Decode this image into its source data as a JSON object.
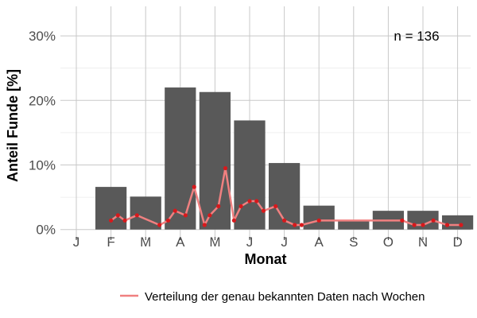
{
  "chart_data": {
    "type": "bar",
    "title": "",
    "xlabel": "Monat",
    "ylabel": "Anteil Funde [%]",
    "categories": [
      "J",
      "F",
      "M",
      "A",
      "M",
      "J",
      "J",
      "A",
      "S",
      "O",
      "N",
      "D"
    ],
    "values": [
      0,
      6.6,
      5.1,
      22.0,
      21.3,
      16.9,
      10.3,
      3.7,
      1.5,
      2.9,
      2.9,
      2.2
    ],
    "ylim": [
      0,
      34
    ],
    "yticks": [
      0,
      10,
      20,
      30
    ],
    "ytick_labels": [
      "0%",
      "10%",
      "20%",
      "30%"
    ],
    "grid": true,
    "annotation": "n = 136",
    "bar_color": "#595959",
    "line_series": {
      "name": "Verteilung der genau bekannten Daten nach Wochen",
      "color": "#f08080",
      "point_color": "#d7191c",
      "x": [
        2.0,
        2.2,
        2.4,
        2.75,
        3.4,
        3.65,
        3.85,
        4.15,
        4.4,
        4.7,
        4.85,
        5.1,
        5.3,
        5.55,
        5.75,
        6.0,
        6.2,
        6.4,
        6.75,
        7.0,
        7.3,
        7.5,
        8.0,
        10.4,
        10.75,
        11.0,
        11.3,
        11.7,
        12.1
      ],
      "y": [
        1.4,
        2.2,
        1.4,
        2.2,
        0.7,
        1.4,
        2.9,
        2.2,
        6.6,
        0.7,
        2.2,
        3.6,
        9.5,
        1.4,
        3.6,
        4.4,
        4.4,
        2.9,
        3.6,
        1.4,
        0.7,
        0.7,
        1.4,
        1.4,
        0.7,
        0.7,
        1.4,
        0.7,
        0.7
      ]
    },
    "legend_position": "bottom"
  }
}
